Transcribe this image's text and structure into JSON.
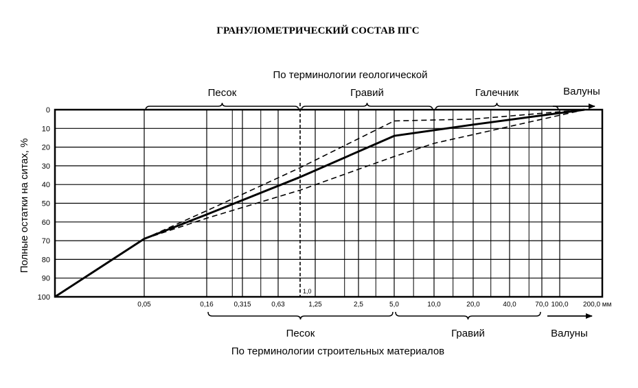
{
  "chart_data": {
    "type": "line",
    "title": "ГРАНУЛОМЕТРИЧЕСКИЙ СОСТАВ ПГС",
    "ylabel": "Полные остатки на ситах, %",
    "xunit": "мм",
    "ylim": [
      0,
      100
    ],
    "y_reversed": true,
    "yticks": [
      "0",
      "10",
      "20",
      "30",
      "40",
      "50",
      "60",
      "70",
      "80",
      "90",
      "100"
    ],
    "xticks": [
      "0,05",
      "0,16",
      "0,315",
      "0,63",
      "1,25",
      "2,5",
      "5,0",
      "10,0",
      "20,0",
      "40,0",
      "70,0",
      "100,0",
      "200,0 мм"
    ],
    "xtick_values": [
      0.05,
      0.16,
      0.315,
      0.63,
      1.25,
      2.5,
      5.0,
      10.0,
      20.0,
      40.0,
      70.0,
      100.0,
      200.0
    ],
    "minor_grid_x": [
      0.26,
      0.45,
      2.0,
      3.5,
      7.0,
      14.0,
      28.0,
      56.0
    ],
    "marker_label": "1,0",
    "marker_value": 1.0,
    "top_caption": "По терминологии геологической",
    "bottom_caption": "По терминологии строительных материалов",
    "geological_classes": [
      {
        "label": "Песок",
        "from": 0.05,
        "to": 1.0
      },
      {
        "label": "Гравий",
        "from": 1.0,
        "to": 10.0
      },
      {
        "label": "Галечник",
        "from": 10.0,
        "to": 100.0
      },
      {
        "label": "Валуны",
        "from": 100.0,
        "to": 200.0
      }
    ],
    "construction_classes": [
      {
        "label": "Песок",
        "from": 0.16,
        "to": 5.0
      },
      {
        "label": "Гравий",
        "from": 5.0,
        "to": 70.0
      },
      {
        "label": "Валуны",
        "from": 70.0,
        "to": 200.0
      }
    ],
    "series": [
      {
        "style": "solid",
        "x": [
          0.01,
          0.05,
          0.16,
          1.0,
          5.0,
          20.0,
          150.0
        ],
        "y": [
          100,
          69,
          56,
          36,
          14,
          8,
          0
        ]
      },
      {
        "style": "dashed",
        "x": [
          0.05,
          0.16,
          1.0,
          5.0,
          20.0,
          150.0
        ],
        "y": [
          69,
          54,
          31,
          6,
          5,
          0
        ]
      },
      {
        "style": "dashed",
        "x": [
          0.05,
          0.16,
          1.0,
          5.0,
          10.0,
          150.0
        ],
        "y": [
          69,
          58,
          43,
          25,
          18,
          0
        ]
      }
    ]
  }
}
